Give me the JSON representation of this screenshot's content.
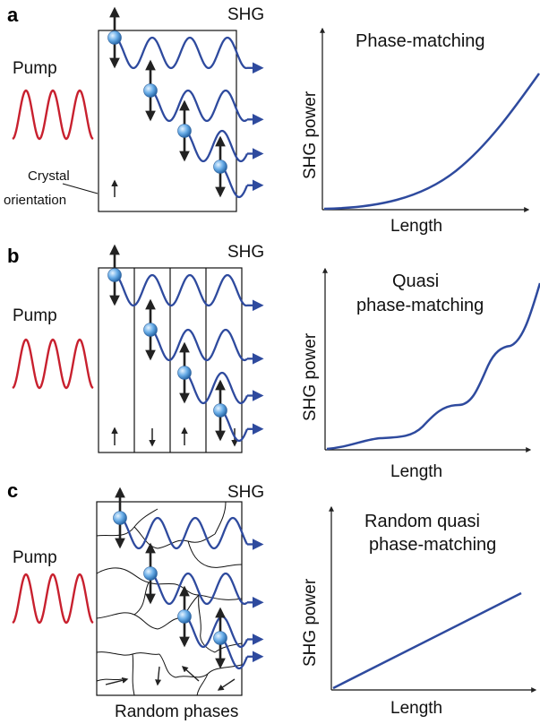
{
  "panels": [
    {
      "letter": "a",
      "shg_label": "SHG",
      "pump_label": "Pump",
      "crystal_label": [
        "Crystal",
        "orientation"
      ],
      "graph": {
        "title": [
          "Phase-matching"
        ],
        "ylabel": "SHG power",
        "xlabel": "Length",
        "curve": "quadratic"
      }
    },
    {
      "letter": "b",
      "shg_label": "SHG",
      "pump_label": "Pump",
      "domain_orientations": [
        "up",
        "down",
        "up",
        "down"
      ],
      "graph": {
        "title": [
          "Quasi",
          "phase-matching"
        ],
        "ylabel": "SHG power",
        "xlabel": "Length",
        "curve": "stepped-quadratic"
      }
    },
    {
      "letter": "c",
      "shg_label": "SHG",
      "pump_label": "Pump",
      "caption": "Random phases",
      "graph": {
        "title": [
          "Random quasi",
          "phase-matching"
        ],
        "ylabel": "SHG power",
        "xlabel": "Length",
        "curve": "linear"
      }
    }
  ],
  "colors": {
    "pump": "#c8202e",
    "shg": "#2e4a9e",
    "arrow": "#222222",
    "bead": "#6aaee8"
  }
}
